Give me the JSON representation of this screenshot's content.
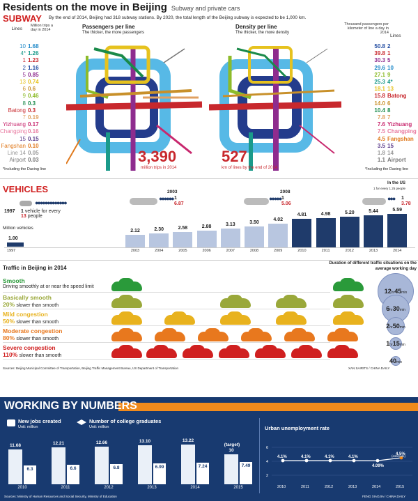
{
  "header": {
    "title": "Residents on the move in Beijing",
    "subtitle": "Subway and private cars"
  },
  "subway": {
    "heading": "SUBWAY",
    "intro": "By the end of 2014, Beijing had 318 subway stations. By 2020, the total length of the Beijing subway is expected to be 1,000 km.",
    "left_header_lines": "Lines",
    "left_header_value": "Million trips a day in 2014",
    "left_rows": [
      {
        "line": "10",
        "value": "1.68",
        "color": "#1e88c8"
      },
      {
        "line": "4*",
        "value": "1.26",
        "color": "#1a9a8a"
      },
      {
        "line": "1",
        "value": "1.23",
        "color": "#c8282d"
      },
      {
        "line": "2",
        "value": "1.16",
        "color": "#1f4aa0"
      },
      {
        "line": "5",
        "value": "0.85",
        "color": "#8e2c8e"
      },
      {
        "line": "13",
        "value": "0.74",
        "color": "#e6c21e"
      },
      {
        "line": "6",
        "value": "0.6",
        "color": "#c8902a"
      },
      {
        "line": "9",
        "value": "0.46",
        "color": "#8dbb2a"
      },
      {
        "line": "8",
        "value": "0.3",
        "color": "#1a8a4a"
      },
      {
        "line": "Batong",
        "value": "0.3",
        "color": "#c8282d"
      },
      {
        "line": "7",
        "value": "0.19",
        "color": "#e0a060"
      },
      {
        "line": "Yizhuang",
        "value": "0.17",
        "color": "#c8286e"
      },
      {
        "line": "Changping",
        "value": "0.16",
        "color": "#e87aa0"
      },
      {
        "line": "15",
        "value": "0.15",
        "color": "#5a3a8a"
      },
      {
        "line": "Fangshan",
        "value": "0.10",
        "color": "#e07a1e"
      },
      {
        "line": "Line 14",
        "value": "0.05",
        "color": "#999999"
      },
      {
        "line": "Airport",
        "value": "0.03",
        "color": "#777777"
      }
    ],
    "left_note": "*Including the Daxing line",
    "map1_title": "Passengers per line",
    "map1_sub": "The thicker, the more passengers",
    "map1_big": "3,390",
    "map1_caption": "million trips in 2014",
    "map2_title": "Density per line",
    "map2_sub": "The thicker, the more density",
    "map2_big": "527",
    "map2_caption": "km of lines by the end of 2014",
    "right_header_value": "Thousand passengers per kilometer of line a day in 2014",
    "right_header_lines": "Lines",
    "right_rows": [
      {
        "value": "50.8",
        "line": "2",
        "color": "#1f4aa0"
      },
      {
        "value": "39.8",
        "line": "1",
        "color": "#c8282d"
      },
      {
        "value": "30.3",
        "line": "5",
        "color": "#8e2c8e"
      },
      {
        "value": "29.6",
        "line": "10",
        "color": "#1e88c8"
      },
      {
        "value": "27.1",
        "line": "9",
        "color": "#8dbb2a"
      },
      {
        "value": "25.3",
        "line": "4*",
        "color": "#1a9a8a"
      },
      {
        "value": "18.1",
        "line": "13",
        "color": "#e6c21e"
      },
      {
        "value": "15.8",
        "line": "Batong",
        "color": "#c8282d"
      },
      {
        "value": "14.0",
        "line": "6",
        "color": "#c8902a"
      },
      {
        "value": "10.4",
        "line": "8",
        "color": "#1a8a4a"
      },
      {
        "value": "7.8",
        "line": "7",
        "color": "#e0a060"
      },
      {
        "value": "7.6",
        "line": "Yizhuang",
        "color": "#c8286e"
      },
      {
        "value": "7.5",
        "line": "Changping",
        "color": "#e87aa0"
      },
      {
        "value": "4.5",
        "line": "Fangshan",
        "color": "#e07a1e"
      },
      {
        "value": "3.5",
        "line": "15",
        "color": "#5a3a8a"
      },
      {
        "value": "1.8",
        "line": "14",
        "color": "#999999"
      },
      {
        "value": "1.1",
        "line": "Airport",
        "color": "#777777"
      }
    ],
    "right_note": "*Including the Daxing line"
  },
  "vehicles": {
    "heading": "VEHICLES",
    "unit_label": "Million vehicles",
    "y1997_year": "1997",
    "y1997_num": "1",
    "y1997_text": "vehicle for every",
    "y1997_people": "13",
    "y1997_people_word": "people",
    "y2003_year": "2003",
    "y2003_a": "1",
    "y2003_b": "6.87",
    "y2008_year": "2008",
    "y2008_a": "1",
    "y2008_b": "5.06",
    "us_label": "In the US",
    "us_sub": "1 for every 1.25 people",
    "y2014_a": "1",
    "y2014_b": "3.78",
    "first_value": "1.00",
    "first_year": "1997",
    "chart_data": {
      "type": "bar",
      "categories": [
        "2003",
        "2004",
        "2005",
        "2006",
        "2007",
        "2008",
        "2009",
        "2010",
        "2011",
        "2012",
        "2013",
        "2014"
      ],
      "values": [
        2.12,
        2.3,
        2.58,
        2.88,
        3.13,
        3.5,
        4.02,
        4.81,
        4.98,
        5.2,
        5.44,
        5.59
      ],
      "labels": [
        "2.12",
        "2.30",
        "2.58",
        "2.88",
        "3.13",
        "3.50",
        "4.02",
        "4.81",
        "4.98",
        "5.20",
        "5.44",
        "5.59"
      ]
    }
  },
  "traffic": {
    "heading": "Traffic in Beijing in 2014",
    "duration_title": "Duration of different traffic situations on the average working day",
    "rows": [
      {
        "name": "Smooth",
        "pct": "",
        "desc": "Driving smoothly at or near the speed limit",
        "color": "#2a9a3a",
        "cars": 2,
        "hrs": "12",
        "mins": "45",
        "r": 26
      },
      {
        "name": "Basically smooth",
        "pct": "20%",
        "desc": "slower than smooth",
        "color": "#9aa83a",
        "cars": 4,
        "hrs": "6",
        "mins": "30",
        "r": 20
      },
      {
        "name": "Mild congestion",
        "pct": "50%",
        "desc": "slower than smooth",
        "color": "#e8b21e",
        "cars": 6,
        "hrs": "2",
        "mins": "50",
        "r": 13
      },
      {
        "name": "Moderate congestion",
        "pct": "80%",
        "desc": "slower than smooth",
        "color": "#e8781e",
        "cars": 8,
        "hrs": "1",
        "mins": "15",
        "r": 9
      },
      {
        "name": "Severe congestion",
        "pct": "110%",
        "desc": "slower than smooth",
        "color": "#d02020",
        "cars": 10,
        "hrs": "",
        "mins": "40",
        "r": 7
      }
    ],
    "hr_unit": "hr",
    "min_unit": "min",
    "sources": "Sources: Beijing Municipal Committee of Transportation, Beijing Traffic Management Bureau, US Department of Transportation",
    "credit": "XAN SAIRITS / CHINA DAILY"
  },
  "working": {
    "title": "WORKING BY NUMBERS",
    "jobs_label": "New jobs created",
    "jobs_unit": "Unit: million",
    "grads_label": "Number of college graduates",
    "grads_unit": "Unit: million",
    "unemp_label": "Urban unemployment rate",
    "years": [
      "2010",
      "2011",
      "2012",
      "2013",
      "2014",
      "2015"
    ],
    "jobs": [
      "11.68",
      "12.21",
      "12.66",
      "13.10",
      "13.22",
      "10"
    ],
    "jobs_vals": [
      11.68,
      12.21,
      12.66,
      13.1,
      13.22,
      10
    ],
    "grads": [
      "6.3",
      "6.6",
      "6.8",
      "6.99",
      "7.24",
      "7.49"
    ],
    "grads_vals": [
      6.3,
      6.6,
      6.8,
      6.99,
      7.24,
      7.49
    ],
    "target_label": "(target)",
    "unemp": [
      "4.1%",
      "4.1%",
      "4.1%",
      "4.1%",
      "4.09%",
      "4.5%"
    ],
    "unemp_vals": [
      4.1,
      4.1,
      4.1,
      4.1,
      4.09,
      4.5
    ],
    "estimate_label": "(estimate)",
    "yaxis_top": "6",
    "yaxis_mid": "4",
    "yaxis_low": "2",
    "sources": "Sources: Ministry of Human Resources and Social Security, Ministry of Education",
    "credit": "FENG XIAOJIA / CHINA DAILY"
  }
}
